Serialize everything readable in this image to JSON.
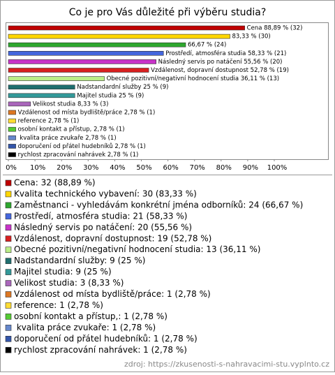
{
  "chart_data": {
    "type": "hbar",
    "title": "Co je pro Vás důležité při výběru studia?",
    "categories": [
      "Cena",
      "Kvalita technického vybavení",
      "Zaměstnanci - vyhledávám konkrétní jména odborníků",
      "Prostředí, atmosféra studia",
      "Následný servis po natáčení",
      "Vzdálenost, dopravní dostupnost",
      "Obecné pozitivní/negativní hodnocení studia",
      "Nadstandardní služby",
      "Majitel studia",
      "Velikost studia",
      "Vzdálenost od místa bydliště/práce",
      "reference",
      "osobní kontakt a přístup,",
      " kvalita práce zvukaře",
      "doporučení od přátel hudebníků",
      "rychlost zpracování nahrávek"
    ],
    "values": [
      88.89,
      83.33,
      66.67,
      58.33,
      55.56,
      52.78,
      36.11,
      25,
      25,
      8.33,
      2.78,
      2.78,
      2.78,
      2.78,
      2.78,
      2.78
    ],
    "value_labels": [
      "Cena 88,89 % (32)",
      "83,33 % (30)",
      "66,67 % (24)",
      "Prostředí, atmosféra studia 58,33 % (21)",
      "Následný servis po natáčení 55,56 % (20)",
      "Vzdálenost, dopravní dostupnost 52,78 % (19)",
      "Obecné pozitivní/negativní hodnocení studia 36,11 % (13)",
      "Nadstandardní služby 25 % (9)",
      "Majitel studia 25 % (9)",
      "Velikost studia 8,33 % (3)",
      "Vzdálenost od místa bydliště/práce 2,78 % (1)",
      "reference 2,78 % (1)",
      "osobní kontakt a přístup, 2,78 % (1)",
      " kvalita práce zvukaře 2,78 % (1)",
      "doporučení od přátel hudebníků 2,78 % (1)",
      "rychlost zpracování nahrávek 2,78 % (1)"
    ],
    "legend": [
      "Cena: 32 (88,89 %)",
      "Kvalita technického vybavení: 30 (83,33 %)",
      "Zaměstnanci - vyhledávám konkrétní jména odborníků: 24 (66,67 %)",
      "Prostředí, atmosféra studia: 21 (58,33 %)",
      "Následný servis po natáčení: 20 (55,56 %)",
      "Vzdálenost, dopravní dostupnost: 19 (52,78 %)",
      "Obecné pozitivní/negativní hodnocení studia: 13 (36,11 %)",
      "Nadstandardní služby: 9 (25 %)",
      "Majitel studia: 9 (25 %)",
      "Velikost studia: 3 (8,33 %)",
      "Vzdálenost od místa bydliště/práce: 1 (2,78 %)",
      "reference: 1 (2,78 %)",
      "osobní kontakt a přístup,: 1 (2,78 %)",
      " kvalita práce zvukaře: 1 (2,78 %)",
      "doporučení od přátel hudebníků: 1 (2,78 %)",
      "rychlost zpracování nahrávek: 1 (2,78 %)"
    ],
    "colors": [
      "#c00000",
      "#ffd700",
      "#2ea82e",
      "#4466dd",
      "#c833c8",
      "#d82020",
      "#bbee88",
      "#1f6f6f",
      "#339999",
      "#aa66bb",
      "#dd7722",
      "#ffdd33",
      "#55cc33",
      "#6688cc",
      "#3355aa",
      "#000000"
    ],
    "xlim": [
      0,
      100
    ],
    "xticks": [
      {
        "value": 0,
        "label": "0%"
      },
      {
        "value": 10,
        "label": "10%"
      },
      {
        "value": 20,
        "label": "20%"
      },
      {
        "value": 30,
        "label": "30%"
      },
      {
        "value": 40,
        "label": "40%"
      },
      {
        "value": 50,
        "label": "50%"
      },
      {
        "value": 60,
        "label": "60%"
      },
      {
        "value": 70,
        "label": "70%"
      },
      {
        "value": 80,
        "label": "80%"
      },
      {
        "value": 90,
        "label": "90%"
      },
      {
        "value": 100,
        "label": "100%"
      }
    ],
    "source": "zdroj: https://zkusenosti-s-nahravacimi-stu.vyplnto.cz"
  }
}
